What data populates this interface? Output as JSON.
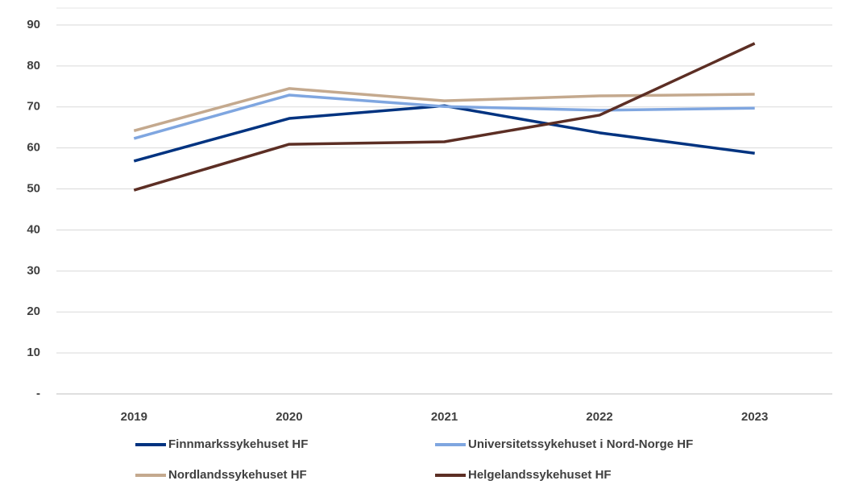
{
  "chart_data": {
    "type": "line",
    "categories": [
      "2019",
      "2020",
      "2021",
      "2022",
      "2023"
    ],
    "series": [
      {
        "name": "Finnmarkssykehuset HF",
        "color": "#003380",
        "values": [
          56.8,
          67.2,
          70.3,
          63.7,
          58.7
        ]
      },
      {
        "name": "Universitetssykehuset i Nord-Norge HF",
        "color": "#7fa6e0",
        "values": [
          62.3,
          72.9,
          70.1,
          69.2,
          69.7
        ]
      },
      {
        "name": "Nordlandssykehuset HF",
        "color": "#c4a98e",
        "values": [
          64.2,
          74.5,
          71.5,
          72.7,
          73.1
        ]
      },
      {
        "name": "Helgelandssykehuset HF",
        "color": "#5c2e24",
        "values": [
          49.7,
          60.9,
          61.5,
          68.0,
          85.5
        ]
      }
    ],
    "ylim": [
      0,
      90
    ],
    "yticks": [
      {
        "value": 0,
        "label": "-"
      },
      10,
      20,
      30,
      40,
      50,
      60,
      70,
      80,
      90
    ],
    "grid": true,
    "legend": "bottom"
  }
}
